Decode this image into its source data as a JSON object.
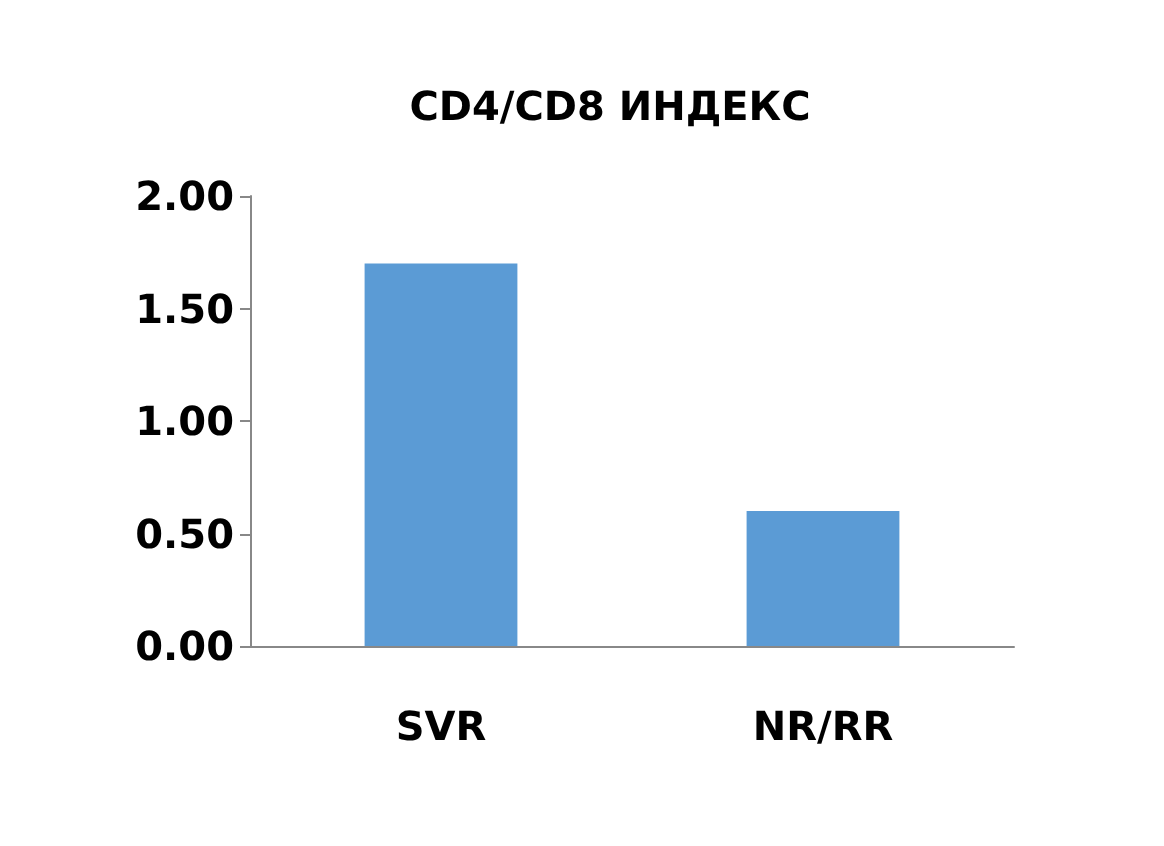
{
  "chart_data": {
    "type": "bar",
    "title": "CD4/CD8 ИНДЕКС",
    "categories": [
      "SVR",
      "NR/RR"
    ],
    "values": [
      1.7,
      0.6
    ],
    "color": "#5b9bd5",
    "ylim": [
      0,
      2
    ],
    "yticks": [
      {
        "value": 0,
        "label": "0.00"
      },
      {
        "value": 0.5,
        "label": "0.50"
      },
      {
        "value": 1,
        "label": "1.00"
      },
      {
        "value": 1.5,
        "label": "1.50"
      },
      {
        "value": 2,
        "label": "2.00"
      }
    ],
    "grid": false
  }
}
